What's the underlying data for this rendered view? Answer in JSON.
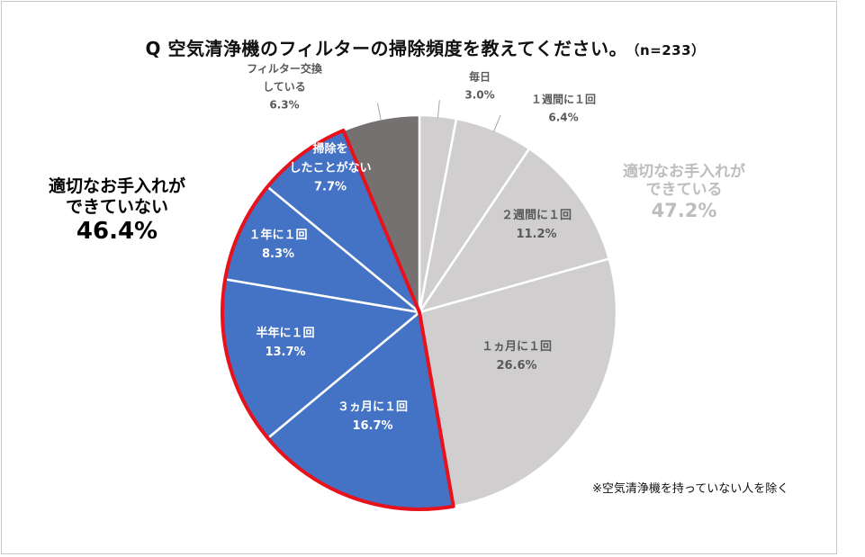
{
  "title": "Q 空気清浄機のフィルターの掃除頻度を教えてください。",
  "sample_size": "（n=233）",
  "footnote": "※空気清浄機を持っていない人を除く",
  "groups": {
    "not_maintained": {
      "line1": "適切なお手入れが",
      "line2": "できていない",
      "percent": "46.4%"
    },
    "maintained": {
      "line1": "適切なお手入れが",
      "line2": "できている",
      "percent": "47.2%"
    }
  },
  "colors": {
    "maintained_fill": "#d0cecf",
    "not_maintained_fill": "#4472c4",
    "filter_fill": "#767171",
    "highlight_stroke": "#e8121c",
    "label_dark_gray": "#595959",
    "label_white": "#ffffff"
  },
  "chart_data": {
    "type": "pie",
    "title": "Q 空気清浄機のフィルターの掃除頻度を教えてください。",
    "start": "12 o'clock, clockwise",
    "slices": [
      {
        "label": "毎日",
        "value": 3.0,
        "value_label": "3.0%",
        "group": "maintained"
      },
      {
        "label": "１週間に１回",
        "value": 6.4,
        "value_label": "6.4%",
        "group": "maintained"
      },
      {
        "label": "２週間に１回",
        "value": 11.2,
        "value_label": "11.2%",
        "group": "maintained"
      },
      {
        "label": "１ヵ月に１回",
        "value": 26.6,
        "value_label": "26.6%",
        "group": "maintained"
      },
      {
        "label": "３ヵ月に１回",
        "value": 16.7,
        "value_label": "16.7%",
        "group": "not_maintained"
      },
      {
        "label": "半年に１回",
        "value": 13.7,
        "value_label": "13.7%",
        "group": "not_maintained"
      },
      {
        "label": "１年に１回",
        "value": 8.3,
        "value_label": "8.3%",
        "group": "not_maintained"
      },
      {
        "label": "掃除をしたことがない",
        "label_lines": [
          "掃除を",
          "したことがない"
        ],
        "value": 7.7,
        "value_label": "7.7%",
        "group": "not_maintained"
      },
      {
        "label": "フィルター交換している",
        "label_lines": [
          "フィルター交換",
          "している"
        ],
        "value": 6.3,
        "value_label": "6.3%",
        "group": "filter"
      }
    ]
  }
}
